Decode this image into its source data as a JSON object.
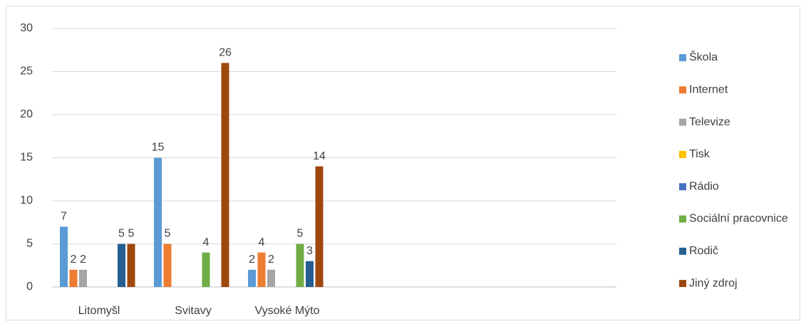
{
  "chart_data": {
    "type": "bar",
    "categories": [
      "Litomyšl",
      "Svitavy",
      "Vysoké Mýto",
      null,
      null,
      null
    ],
    "series": [
      {
        "name": "Škola",
        "color": "#5b9bd5",
        "values": [
          7,
          15,
          2,
          null,
          null,
          null
        ]
      },
      {
        "name": "Internet",
        "color": "#ed7d31",
        "values": [
          2,
          5,
          4,
          null,
          null,
          null
        ]
      },
      {
        "name": "Televize",
        "color": "#a5a5a5",
        "values": [
          2,
          null,
          2,
          null,
          null,
          null
        ]
      },
      {
        "name": "Tisk",
        "color": "#ffc000",
        "values": [
          null,
          null,
          null,
          null,
          null,
          null
        ]
      },
      {
        "name": "Rádio",
        "color": "#4472c4",
        "values": [
          null,
          null,
          null,
          null,
          null,
          null
        ]
      },
      {
        "name": "Sociální pracovnice",
        "color": "#70ad47",
        "values": [
          null,
          4,
          5,
          null,
          null,
          null
        ]
      },
      {
        "name": "Rodič",
        "color": "#255e91",
        "values": [
          5,
          null,
          3,
          null,
          null,
          null
        ]
      },
      {
        "name": "Jiný zdroj",
        "color": "#9e480e",
        "values": [
          5,
          26,
          14,
          null,
          null,
          null
        ]
      }
    ],
    "ylim": [
      0,
      30
    ],
    "yticks": [
      0,
      5,
      10,
      15,
      20,
      25,
      30
    ],
    "grid": true,
    "legend": "right",
    "data_labels": true
  }
}
